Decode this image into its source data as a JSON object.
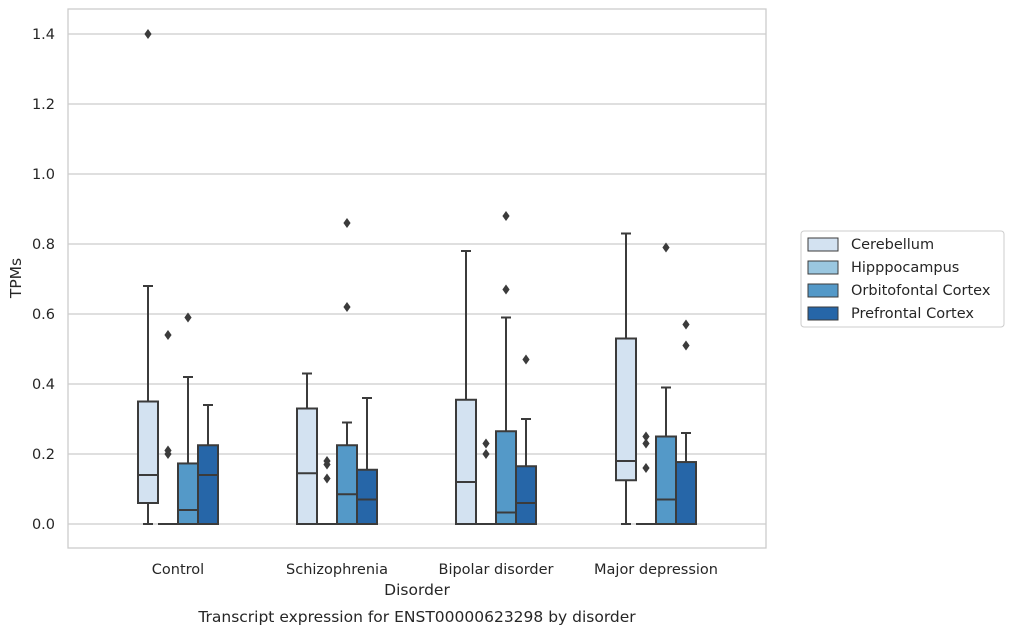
{
  "chart_data": {
    "type": "box",
    "caption": "Transcript expression for ENST00000623298 by disorder",
    "xlabel": "Disorder",
    "ylabel": "TPMs",
    "ylim": [
      -0.07,
      1.47
    ],
    "yticks": [
      0.0,
      0.2,
      0.4,
      0.6,
      0.8,
      1.0,
      1.2,
      1.4
    ],
    "ytick_labels": [
      "0.0",
      "0.2",
      "0.4",
      "0.6",
      "0.8",
      "1.0",
      "1.2",
      "1.4"
    ],
    "grid": "horizontal",
    "legend_position": "right",
    "categories": [
      "Control",
      "Schizophrenia",
      "Bipolar disorder",
      "Major depression"
    ],
    "series": [
      {
        "name": "Cerebellum",
        "color": "#d3e2f1",
        "boxes": [
          {
            "whislo": 0.0,
            "q1": 0.06,
            "med": 0.14,
            "q3": 0.35,
            "whishi": 0.68,
            "fliers": [
              1.4
            ]
          },
          {
            "whislo": 0.0,
            "q1": 0.0,
            "med": 0.145,
            "q3": 0.33,
            "whishi": 0.43,
            "fliers": []
          },
          {
            "whislo": 0.0,
            "q1": 0.0,
            "med": 0.12,
            "q3": 0.355,
            "whishi": 0.78,
            "fliers": []
          },
          {
            "whislo": 0.0,
            "q1": 0.125,
            "med": 0.18,
            "q3": 0.53,
            "whishi": 0.83,
            "fliers": []
          }
        ]
      },
      {
        "name": "Hipppocampus",
        "color": "#9ac7e0",
        "boxes": [
          {
            "whislo": 0.0,
            "q1": 0.0,
            "med": 0.0,
            "q3": 0.0,
            "whishi": 0.0,
            "fliers": [
              0.2,
              0.21,
              0.54
            ]
          },
          {
            "whislo": 0.0,
            "q1": 0.0,
            "med": 0.0,
            "q3": 0.0,
            "whishi": 0.0,
            "fliers": [
              0.13,
              0.17,
              0.18
            ]
          },
          {
            "whislo": 0.0,
            "q1": 0.0,
            "med": 0.0,
            "q3": 0.0,
            "whishi": 0.0,
            "fliers": [
              0.2,
              0.23
            ]
          },
          {
            "whislo": 0.0,
            "q1": 0.0,
            "med": 0.0,
            "q3": 0.0,
            "whishi": 0.0,
            "fliers": [
              0.16,
              0.23,
              0.25
            ]
          }
        ]
      },
      {
        "name": "Orbitofontal Cortex",
        "color": "#5499c8",
        "boxes": [
          {
            "whislo": 0.0,
            "q1": 0.0,
            "med": 0.04,
            "q3": 0.173,
            "whishi": 0.42,
            "fliers": [
              0.59
            ]
          },
          {
            "whislo": 0.0,
            "q1": 0.0,
            "med": 0.085,
            "q3": 0.225,
            "whishi": 0.29,
            "fliers": [
              0.62,
              0.86
            ]
          },
          {
            "whislo": 0.0,
            "q1": 0.0,
            "med": 0.033,
            "q3": 0.265,
            "whishi": 0.59,
            "fliers": [
              0.67,
              0.88
            ]
          },
          {
            "whislo": 0.0,
            "q1": 0.0,
            "med": 0.07,
            "q3": 0.25,
            "whishi": 0.39,
            "fliers": [
              0.79
            ]
          }
        ]
      },
      {
        "name": "Prefrontal Cortex",
        "color": "#2666a8",
        "boxes": [
          {
            "whislo": 0.0,
            "q1": 0.0,
            "med": 0.14,
            "q3": 0.225,
            "whishi": 0.34,
            "fliers": []
          },
          {
            "whislo": 0.0,
            "q1": 0.0,
            "med": 0.07,
            "q3": 0.155,
            "whishi": 0.36,
            "fliers": []
          },
          {
            "whislo": 0.0,
            "q1": 0.0,
            "med": 0.06,
            "q3": 0.165,
            "whishi": 0.3,
            "fliers": [
              0.47
            ]
          },
          {
            "whislo": 0.0,
            "q1": 0.0,
            "med": 0.0,
            "q3": 0.177,
            "whishi": 0.26,
            "fliers": [
              0.51,
              0.57
            ]
          }
        ]
      }
    ]
  },
  "style": {
    "grid_color": "#cccccc",
    "frame_color": "#cccccc",
    "line_color": "#3b3b3b",
    "text_color": "#262626"
  }
}
